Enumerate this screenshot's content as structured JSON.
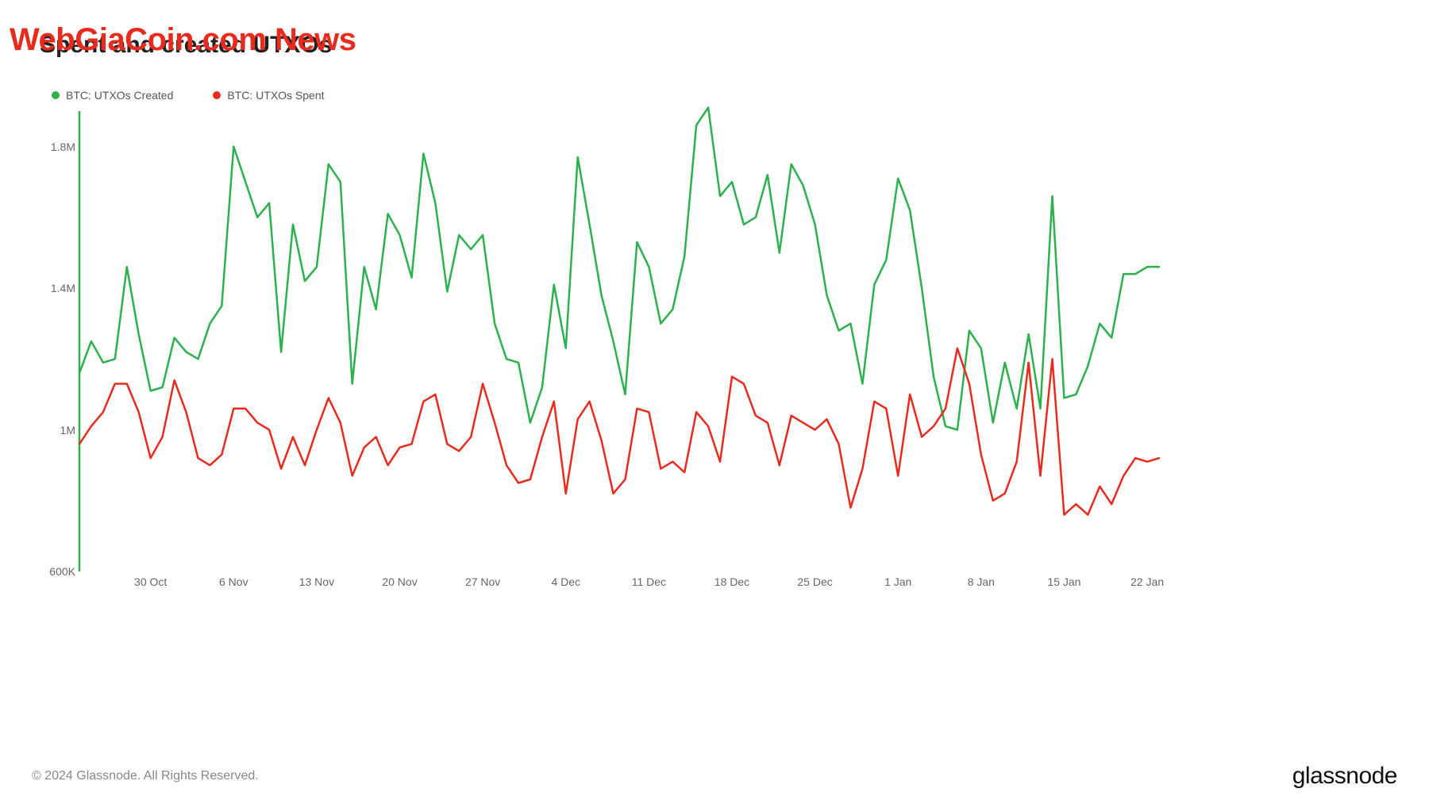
{
  "watermark": "WebGiaCoin.com News",
  "title": "Spent and created UTXOs",
  "legend": {
    "created": {
      "label": "BTC: UTXOs Created",
      "color": "#2bb24c"
    },
    "spent": {
      "label": "BTC: UTXOs Spent",
      "color": "#e92b1d"
    }
  },
  "chart": {
    "type": "line",
    "background_color": "#ffffff",
    "grid_color": "#ffffff",
    "line_width": 2.5,
    "ylim": [
      600000,
      1900000
    ],
    "yticks": [
      {
        "value": 600000,
        "label": "600K"
      },
      {
        "value": 1000000,
        "label": "1M"
      },
      {
        "value": 1400000,
        "label": "1.4M"
      },
      {
        "value": 1800000,
        "label": "1.8M"
      }
    ],
    "x_labels": [
      "30 Oct",
      "6 Nov",
      "13 Nov",
      "20 Nov",
      "27 Nov",
      "4 Dec",
      "11 Dec",
      "18 Dec",
      "25 Dec",
      "1 Jan",
      "8 Jan",
      "15 Jan",
      "22 Jan"
    ],
    "x_count": 92,
    "x_label_indices": [
      6,
      13,
      20,
      27,
      34,
      41,
      48,
      55,
      62,
      69,
      76,
      83,
      90
    ],
    "series": {
      "created": {
        "color": "#2bb24c",
        "values": [
          1160000,
          1250000,
          1190000,
          1200000,
          1460000,
          1270000,
          1110000,
          1120000,
          1260000,
          1220000,
          1200000,
          1300000,
          1350000,
          1800000,
          1700000,
          1600000,
          1640000,
          1220000,
          1580000,
          1420000,
          1460000,
          1750000,
          1700000,
          1130000,
          1460000,
          1340000,
          1610000,
          1550000,
          1430000,
          1780000,
          1640000,
          1390000,
          1550000,
          1510000,
          1550000,
          1300000,
          1200000,
          1190000,
          1020000,
          1120000,
          1410000,
          1230000,
          1770000,
          1580000,
          1380000,
          1250000,
          1100000,
          1530000,
          1460000,
          1300000,
          1340000,
          1490000,
          1860000,
          1910000,
          1660000,
          1700000,
          1580000,
          1600000,
          1720000,
          1500000,
          1750000,
          1690000,
          1580000,
          1380000,
          1280000,
          1300000,
          1130000,
          1410000,
          1480000,
          1710000,
          1620000,
          1400000,
          1150000,
          1010000,
          1000000,
          1280000,
          1230000,
          1020000,
          1190000,
          1060000,
          1270000,
          1060000,
          1660000,
          1090000,
          1100000,
          1180000,
          1300000,
          1260000,
          1440000,
          1440000,
          1460000,
          1460000
        ]
      },
      "spent": {
        "color": "#e92b1d",
        "values": [
          960000,
          1010000,
          1050000,
          1130000,
          1130000,
          1050000,
          920000,
          980000,
          1140000,
          1050000,
          920000,
          900000,
          930000,
          1060000,
          1060000,
          1020000,
          1000000,
          890000,
          980000,
          900000,
          1000000,
          1090000,
          1020000,
          870000,
          950000,
          980000,
          900000,
          950000,
          960000,
          1080000,
          1100000,
          960000,
          940000,
          980000,
          1130000,
          1020000,
          900000,
          850000,
          860000,
          980000,
          1080000,
          820000,
          1030000,
          1080000,
          970000,
          820000,
          860000,
          1060000,
          1050000,
          890000,
          910000,
          880000,
          1050000,
          1010000,
          910000,
          1150000,
          1130000,
          1040000,
          1020000,
          900000,
          1040000,
          1020000,
          1000000,
          1030000,
          960000,
          780000,
          890000,
          1080000,
          1060000,
          870000,
          1100000,
          980000,
          1010000,
          1060000,
          1230000,
          1130000,
          930000,
          800000,
          820000,
          910000,
          1190000,
          870000,
          1200000,
          760000,
          790000,
          760000,
          840000,
          790000,
          870000,
          920000,
          910000,
          920000
        ]
      }
    }
  },
  "footer": {
    "copyright": "© 2024 Glassnode. All Rights Reserved.",
    "brand": "glassnode"
  },
  "typography": {
    "title_fontsize": 30,
    "axis_fontsize": 14,
    "legend_fontsize": 14,
    "footer_fontsize": 16,
    "brand_fontsize": 30,
    "watermark_fontsize": 40
  }
}
